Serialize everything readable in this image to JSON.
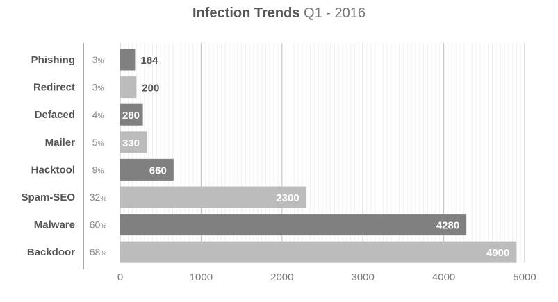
{
  "title": {
    "bold": "Infection Trends",
    "rest": "Q1 - 2016"
  },
  "colors": {
    "dark": "#808080",
    "light": "#bcbcbc",
    "grid": "#c8c8c8",
    "minor_grid": "#f0f0f0",
    "axis": "#aaaaaa"
  },
  "chart_data": {
    "type": "bar",
    "orientation": "horizontal",
    "title": "Infection Trends Q1 - 2016",
    "categories": [
      "Phishing",
      "Redirect",
      "Defaced",
      "Mailer",
      "Hacktool",
      "Spam-SEO",
      "Malware",
      "Backdoor"
    ],
    "values": [
      184,
      200,
      280,
      330,
      660,
      2300,
      4280,
      4900
    ],
    "percent_labels": [
      "3",
      "3",
      "4",
      "5",
      "9",
      "32",
      "60",
      "68"
    ],
    "percent_symbol": "%",
    "bar_colors": [
      "#808080",
      "#bcbcbc",
      "#808080",
      "#bcbcbc",
      "#808080",
      "#bcbcbc",
      "#808080",
      "#bcbcbc"
    ],
    "xlim": [
      0,
      5000
    ],
    "xticks": [
      0,
      1000,
      2000,
      3000,
      4000,
      5000
    ],
    "grid": true
  }
}
